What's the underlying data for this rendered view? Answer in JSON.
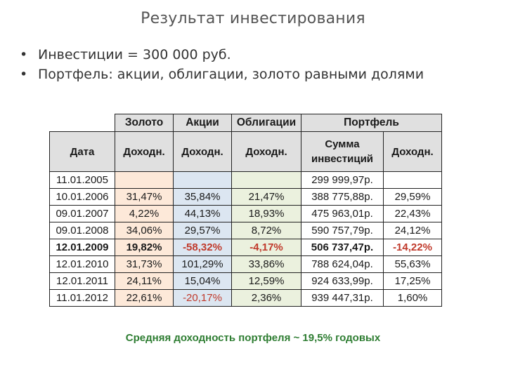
{
  "title": "Результат инвестирования",
  "bullets": [
    "Инвестиции = 300 000 руб.",
    "Портфель: акции, облигации, золото равными долями"
  ],
  "table": {
    "group_headers": {
      "gold": "Золото",
      "stocks": "Акции",
      "bonds": "Облигации",
      "portfolio": "Портфель"
    },
    "column_headers": {
      "date": "Дата",
      "gold_return": "Доходн.",
      "stocks_return": "Доходн.",
      "bonds_return": "Доходн.",
      "sum_line1": "Сумма",
      "sum_line2": "инвестиций",
      "portfolio_return": "Доходн."
    },
    "rows": [
      {
        "date": "11.01.2005",
        "gold": "",
        "stocks": "",
        "bonds": "",
        "sum": "299 999,97р.",
        "ret": ""
      },
      {
        "date": "10.01.2006",
        "gold": "31,47%",
        "stocks": "35,84%",
        "bonds": "21,47%",
        "sum": "388 775,88р.",
        "ret": "29,59%"
      },
      {
        "date": "09.01.2007",
        "gold": "4,22%",
        "stocks": "44,13%",
        "bonds": "18,93%",
        "sum": "475 963,01р.",
        "ret": "22,43%"
      },
      {
        "date": "09.01.2008",
        "gold": "34,06%",
        "stocks": "29,57%",
        "bonds": "8,72%",
        "sum": "590 757,79р.",
        "ret": "24,12%"
      },
      {
        "date": "12.01.2009",
        "gold": "19,82%",
        "stocks": "-58,32%",
        "bonds": "-4,17%",
        "sum": "506 737,47р.",
        "ret": "-14,22%"
      },
      {
        "date": "12.01.2010",
        "gold": "31,73%",
        "stocks": "101,29%",
        "bonds": "33,86%",
        "sum": "788 624,04р.",
        "ret": "55,63%"
      },
      {
        "date": "12.01.2011",
        "gold": "24,11%",
        "stocks": "15,04%",
        "bonds": "12,59%",
        "sum": "924 633,99р.",
        "ret": "17,25%"
      },
      {
        "date": "11.01.2012",
        "gold": "22,61%",
        "stocks": "-20,17%",
        "bonds": "2,36%",
        "sum": "939 447,31р.",
        "ret": "1,60%"
      }
    ]
  },
  "footer_note": "Средняя доходность портфеля ~ 19,5% годовых",
  "colors": {
    "gold_fill": "#fde9d9",
    "stocks_fill": "#dce6f1",
    "bonds_fill": "#ebf1de",
    "header_fill": "#e0e0e0",
    "negative_text": "#c0392b",
    "footer_text": "#2e7d32"
  }
}
